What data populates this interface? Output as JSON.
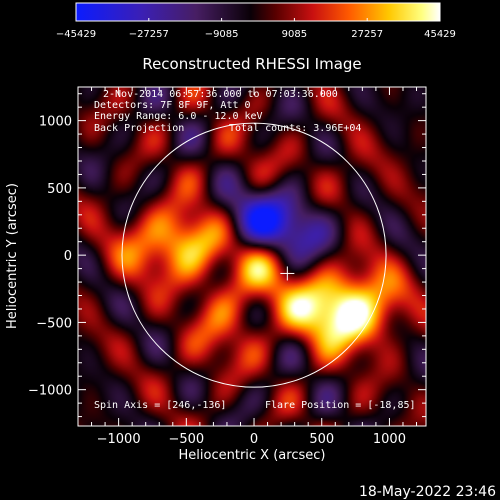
{
  "chart_data": {
    "type": "heatmap",
    "title": "Reconstructed RHESSI Image",
    "xlabel": "Heliocentric X (arcsec)",
    "ylabel": "Heliocentric Y (arcsec)",
    "xlim": [
      -1300,
      1270
    ],
    "ylim": [
      -1270,
      1250
    ],
    "x_ticks": [
      -1000,
      -500,
      0,
      500,
      1000
    ],
    "y_ticks": [
      -1000,
      -500,
      0,
      500,
      1000
    ],
    "x_tick_labels": [
      "−1000",
      "−500",
      "0",
      "500",
      "1000"
    ],
    "y_tick_labels": [
      "−1000",
      "−500",
      "0",
      "500",
      "1000"
    ],
    "colorbar": {
      "min": -45429,
      "max": 45429,
      "tick_values": [
        -45429,
        -27257,
        -9085,
        9085,
        27257,
        45429
      ],
      "tick_labels": [
        "−45429",
        "−27257",
        "−9085",
        "9085",
        "27257",
        "45429"
      ],
      "colors": [
        "#0b1cff",
        "#3b1fb5",
        "#471e63",
        "#0a0007",
        "#5a0000",
        "#c81010",
        "#ff5a00",
        "#ffc800",
        "#ffff80",
        "#ffffff"
      ]
    },
    "annotations": {
      "time_range": "2-Nov-2014 06:57:36.000 to 07:03:36.000",
      "detectors": "Detectors: 7F 8F 9F, Att 0",
      "energy_range": "Energy Range: 6.0 - 12.0 keV",
      "method": "Back Projection",
      "total_counts": "Total counts: 3.96E+04",
      "spin_axis": "Spin Axis = [246,-136]",
      "flare_position": "Flare Position = [-18,85]"
    },
    "solar_limb_radius_arcsec": 975,
    "solar_center": [
      0,
      0
    ],
    "spin_axis_marker": [
      246,
      -136
    ],
    "peaks": [
      {
        "x": 60,
        "y": 10,
        "value": 45000
      },
      {
        "x": 560,
        "y": -420,
        "value": 36000
      },
      {
        "x": -350,
        "y": 130,
        "value": 28000
      },
      {
        "x": -540,
        "y": 120,
        "value": 24000
      },
      {
        "x": 780,
        "y": -480,
        "value": 22000
      },
      {
        "x": 230,
        "y": 150,
        "value": 20000
      },
      {
        "x": 880,
        "y": -280,
        "value": 18000
      },
      {
        "x": -860,
        "y": 20,
        "value": 16000
      },
      {
        "x": 330,
        "y": -320,
        "value": 14000
      },
      {
        "x": -150,
        "y": -400,
        "value": 12000
      },
      {
        "x": -300,
        "y": -680,
        "value": 12000
      },
      {
        "x": 620,
        "y": 520,
        "value": 10000
      },
      {
        "x": -30,
        "y": 640,
        "value": 10000
      },
      {
        "x": 60,
        "y": 220,
        "value": -45000
      },
      {
        "x": 230,
        "y": 120,
        "value": -38000
      },
      {
        "x": -190,
        "y": 230,
        "value": -20000
      },
      {
        "x": 420,
        "y": 200,
        "value": -16000
      }
    ]
  },
  "footer": {
    "timestamp": "18-May-2022 23:46"
  }
}
